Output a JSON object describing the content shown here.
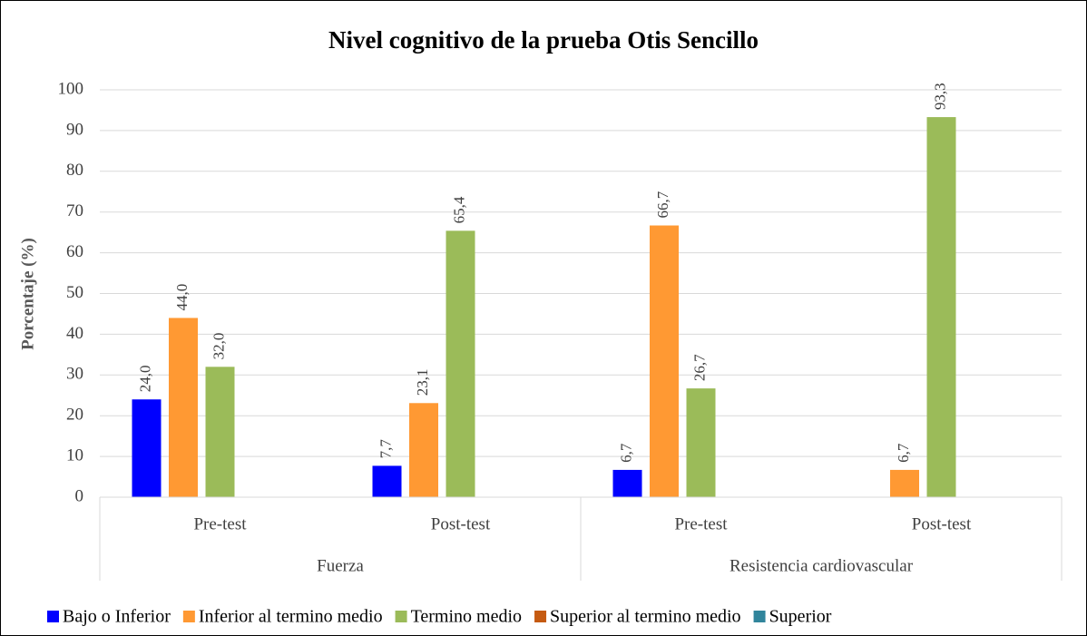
{
  "chart_data": {
    "type": "bar",
    "title": "Nivel cognitivo de la prueba Otis Sencillo",
    "y_label": "Porcentaje (%)",
    "categories": [
      "Pre-test",
      "Post-test",
      "Pre-test",
      "Post-test"
    ],
    "groups": [
      "Fuerza",
      "Resistencia cardiovascular"
    ],
    "series": [
      {
        "name": "Bajo o Inferior",
        "color": "#0000ff",
        "values": [
          24.0,
          7.7,
          6.7,
          null
        ],
        "value_labels": [
          "24,0",
          "7,7",
          "6,7",
          null
        ]
      },
      {
        "name": "Inferior al termino medio",
        "color": "#ff9933",
        "values": [
          44.0,
          23.1,
          66.7,
          6.7
        ],
        "value_labels": [
          "44,0",
          "23,1",
          "66,7",
          "6,7"
        ]
      },
      {
        "name": "Termino medio",
        "color": "#9bbb59",
        "values": [
          32.0,
          65.4,
          26.7,
          93.3
        ],
        "value_labels": [
          "32,0",
          "65,4",
          "26,7",
          "93,3"
        ]
      },
      {
        "name": "Superior al termino medio",
        "color": "#c55a11",
        "values": [
          null,
          null,
          null,
          null
        ]
      },
      {
        "name": "Superior",
        "color": "#31859c",
        "values": [
          null,
          null,
          null,
          null
        ]
      }
    ],
    "ylim": [
      0,
      100
    ],
    "yticks": [
      0,
      10,
      20,
      30,
      40,
      50,
      60,
      70,
      80,
      90,
      100
    ],
    "grid": true,
    "legend": "bottom"
  }
}
